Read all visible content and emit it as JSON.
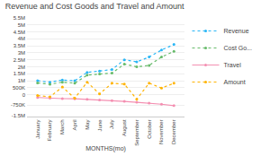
{
  "chart_data": {
    "type": "line",
    "title": "Revenue and Cost Goods and Travel and Amount",
    "x_label": "MONTHS(mo)",
    "categories": [
      "January",
      "February",
      "March",
      "April",
      "May",
      "June",
      "July",
      "August",
      "September",
      "October",
      "November",
      "December"
    ],
    "series": [
      {
        "name": "Revenue",
        "color": "#29B6F6",
        "marker": "circle",
        "line_style": "dotted",
        "values": [
          1000000,
          900000,
          1050000,
          1000000,
          1600000,
          1700000,
          1800000,
          2500000,
          2350000,
          2700000,
          3200000,
          3600000
        ]
      },
      {
        "name": "Cost Go...",
        "color": "#66BB6A",
        "marker": "circle",
        "line_style": "dotted",
        "values": [
          850000,
          750000,
          900000,
          830000,
          1400000,
          1480000,
          1550000,
          2200000,
          2000000,
          2100000,
          2700000,
          3100000
        ]
      },
      {
        "name": "Travel",
        "color": "#F48FB1",
        "marker": "circle",
        "line_style": "solid",
        "values": [
          -200000,
          -250000,
          -280000,
          -290000,
          -330000,
          -370000,
          -420000,
          -480000,
          -540000,
          -600000,
          -680000,
          -780000
        ]
      },
      {
        "name": "Amount",
        "color": "#FFB300",
        "marker": "circle",
        "line_style": "dotted",
        "values": [
          -60000,
          -150000,
          550000,
          -250000,
          900000,
          60000,
          820000,
          760000,
          -320000,
          830000,
          480000,
          820000
        ]
      }
    ],
    "ylim": [
      -1500000,
      5500000
    ],
    "yticks": [
      {
        "value": -1500000,
        "label": "-1.5M"
      },
      {
        "value": -750000,
        "label": "-750K"
      },
      0,
      {
        "value": 500000,
        "label": "500K"
      },
      {
        "value": 1000000,
        "label": "1M"
      },
      {
        "value": 1500000,
        "label": "1.5M"
      },
      {
        "value": 2000000,
        "label": "2M"
      },
      {
        "value": 2500000,
        "label": "2.5M"
      },
      {
        "value": 3000000,
        "label": "3M"
      },
      {
        "value": 3500000,
        "label": "3.5M"
      },
      {
        "value": 4000000,
        "label": "4M"
      },
      {
        "value": 4500000,
        "label": "4.5M"
      },
      {
        "value": 5000000,
        "label": "5M"
      },
      {
        "value": 5500000,
        "label": "5.5M"
      }
    ],
    "grid": "y",
    "legend": "right"
  }
}
